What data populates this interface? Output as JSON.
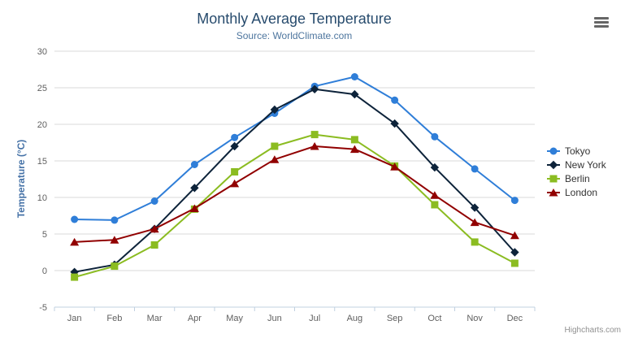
{
  "credit": "Highcharts.com",
  "colors": {
    "grid": "#d8d8d8",
    "axis_line": "#c0d0e0",
    "tick": "#c0d0e0",
    "axis_label": "#606060",
    "title": "#274b6d",
    "subtitle": "#4d759e",
    "y_axis_title": "#4572a7",
    "legend_text": "#333333",
    "credit_text": "#909090",
    "menu_icon": "#666666"
  },
  "chart_data": {
    "type": "line",
    "title": "Monthly Average Temperature",
    "subtitle": "Source: WorldClimate.com",
    "categories": [
      "Jan",
      "Feb",
      "Mar",
      "Apr",
      "May",
      "Jun",
      "Jul",
      "Aug",
      "Sep",
      "Oct",
      "Nov",
      "Dec"
    ],
    "xlabel": "",
    "ylabel": "Temperature (°C)",
    "ylim": [
      -5,
      30
    ],
    "ytick_step": 5,
    "grid": true,
    "legend_position": "right",
    "series": [
      {
        "name": "Tokyo",
        "color": "#2f7ed8",
        "marker": "circle",
        "values": [
          7.0,
          6.9,
          9.5,
          14.5,
          18.2,
          21.5,
          25.2,
          26.5,
          23.3,
          18.3,
          13.9,
          9.6
        ]
      },
      {
        "name": "New York",
        "color": "#0d233a",
        "marker": "diamond",
        "values": [
          -0.2,
          0.8,
          5.7,
          11.3,
          17.0,
          22.0,
          24.8,
          24.1,
          20.1,
          14.1,
          8.6,
          2.5
        ]
      },
      {
        "name": "Berlin",
        "color": "#8bbc21",
        "marker": "square",
        "values": [
          -0.9,
          0.6,
          3.5,
          8.4,
          13.5,
          17.0,
          18.6,
          17.9,
          14.3,
          9.0,
          3.9,
          1.0
        ]
      },
      {
        "name": "London",
        "color": "#910000",
        "marker": "triangle",
        "values": [
          3.9,
          4.2,
          5.7,
          8.5,
          11.9,
          15.2,
          17.0,
          16.6,
          14.2,
          10.3,
          6.6,
          4.8
        ]
      }
    ]
  }
}
